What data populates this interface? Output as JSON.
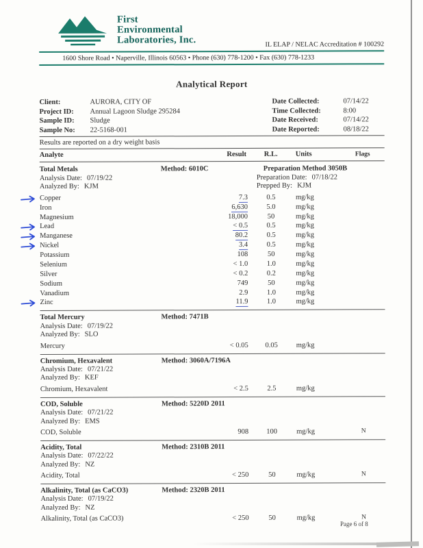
{
  "colors": {
    "accent": "#1b7c6b",
    "ink": "#2e2e2e",
    "annotation": "#2d4bd6"
  },
  "icons": {
    "logo": "mountain-lake-logo",
    "annotation": "right-arrow"
  },
  "letterhead": {
    "company": [
      "First",
      "Environmental",
      "Laboratories, Inc."
    ],
    "accreditation": "IL ELAP / NELAC Accreditation # 100292",
    "address": "1600 Shore Road • Naperville, Illinois 60563 • Phone (630) 778-1200 • Fax (630) 778-1233"
  },
  "report": {
    "title": "Analytical Report",
    "note": "Results are reported on a dry weight basis",
    "columns": {
      "analyte": "Analyte",
      "result": "Result",
      "rl": "R.L.",
      "units": "Units",
      "flags": "Flags"
    }
  },
  "info": {
    "client": {
      "label": "Client:",
      "value": "AURORA, CITY OF"
    },
    "project_id": {
      "label": "Project ID:",
      "value": "Annual Lagoon Sludge 295284"
    },
    "sample_id": {
      "label": "Sample ID:",
      "value": "Sludge"
    },
    "sample_no": {
      "label": "Sample No:",
      "value": "22-5168-001"
    },
    "date_collected": {
      "label": "Date Collected:",
      "value": "07/14/22"
    },
    "time_collected": {
      "label": "Time Collected:",
      "value": "8:00"
    },
    "date_received": {
      "label": "Date Received:",
      "value": "07/14/22"
    },
    "date_reported": {
      "label": "Date Reported:",
      "value": "08/18/22"
    }
  },
  "sections": [
    {
      "title": "Total Metals",
      "method": "Method: 6010C",
      "prep_method": "Preparation Method 3050B",
      "details_left": [
        {
          "label": "Analysis Date:",
          "value": "07/19/22"
        },
        {
          "label": "Analyzed By:",
          "value": "KJM"
        }
      ],
      "details_right": [
        {
          "label": "Preparation Date:",
          "value": "07/18/22"
        },
        {
          "label": "Prepped By:",
          "value": "KJM"
        }
      ],
      "rows": [
        {
          "analyte": "Copper",
          "result": "7.3",
          "rl": "0.5",
          "units": "mg/kg",
          "flags": "",
          "annotated": true,
          "underlined": true
        },
        {
          "analyte": "Iron",
          "result": "6,630",
          "rl": "5.0",
          "units": "mg/kg",
          "flags": "",
          "annotated": false,
          "underlined": true
        },
        {
          "analyte": "Magnesium",
          "result": "18,000",
          "rl": "50",
          "units": "mg/kg",
          "flags": "",
          "annotated": false,
          "underlined": false
        },
        {
          "analyte": "Lead",
          "result": "< 0.5",
          "rl": "0.5",
          "units": "mg/kg",
          "flags": "",
          "annotated": true,
          "underlined": true
        },
        {
          "analyte": "Manganese",
          "result": "80.2",
          "rl": "0.5",
          "units": "mg/kg",
          "flags": "",
          "annotated": true,
          "underlined": true
        },
        {
          "analyte": "Nickel",
          "result": "3.4",
          "rl": "0.5",
          "units": "mg/kg",
          "flags": "",
          "annotated": true,
          "underlined": true
        },
        {
          "analyte": "Potassium",
          "result": "108",
          "rl": "50",
          "units": "mg/kg",
          "flags": "",
          "annotated": false,
          "underlined": false
        },
        {
          "analyte": "Selenium",
          "result": "< 1.0",
          "rl": "1.0",
          "units": "mg/kg",
          "flags": "",
          "annotated": false,
          "underlined": false
        },
        {
          "analyte": "Silver",
          "result": "< 0.2",
          "rl": "0.2",
          "units": "mg/kg",
          "flags": "",
          "annotated": false,
          "underlined": false
        },
        {
          "analyte": "Sodium",
          "result": "749",
          "rl": "50",
          "units": "mg/kg",
          "flags": "",
          "annotated": false,
          "underlined": false
        },
        {
          "analyte": "Vanadium",
          "result": "2.9",
          "rl": "1.0",
          "units": "mg/kg",
          "flags": "",
          "annotated": false,
          "underlined": false
        },
        {
          "analyte": "Zinc",
          "result": "11.9",
          "rl": "1.0",
          "units": "mg/kg",
          "flags": "",
          "annotated": true,
          "underlined": true
        }
      ]
    },
    {
      "title": "Total Mercury",
      "method": "Method: 7471B",
      "prep_method": "",
      "details_left": [
        {
          "label": "Analysis Date:",
          "value": "07/19/22"
        },
        {
          "label": "Analyzed By:",
          "value": "SLO"
        }
      ],
      "details_right": [],
      "rows": [
        {
          "analyte": "Mercury",
          "result": "< 0.05",
          "rl": "0.05",
          "units": "mg/kg",
          "flags": "",
          "annotated": false,
          "underlined": false
        }
      ]
    },
    {
      "title": "Chromium, Hexavalent",
      "method": "Method: 3060A/7196A",
      "prep_method": "",
      "details_left": [
        {
          "label": "Analysis Date:",
          "value": "07/21/22"
        },
        {
          "label": "Analyzed By:",
          "value": "KEF"
        }
      ],
      "details_right": [],
      "rows": [
        {
          "analyte": "Chromium, Hexavalent",
          "result": "< 2.5",
          "rl": "2.5",
          "units": "mg/kg",
          "flags": "",
          "annotated": false,
          "underlined": false
        }
      ]
    },
    {
      "title": "COD, Soluble",
      "method": "Method: 5220D 2011",
      "prep_method": "",
      "details_left": [
        {
          "label": "Analysis Date:",
          "value": "07/21/22"
        },
        {
          "label": "Analyzed By:",
          "value": "EMS"
        }
      ],
      "details_right": [],
      "rows": [
        {
          "analyte": "COD, Soluble",
          "result": "908",
          "rl": "100",
          "units": "mg/kg",
          "flags": "N",
          "annotated": false,
          "underlined": false
        }
      ]
    },
    {
      "title": "Acidity, Total",
      "method": "Method: 2310B 2011",
      "prep_method": "",
      "details_left": [
        {
          "label": "Analysis Date:",
          "value": "07/22/22"
        },
        {
          "label": "Analyzed By:",
          "value": "NZ"
        }
      ],
      "details_right": [],
      "rows": [
        {
          "analyte": "Acidity, Total",
          "result": "< 250",
          "rl": "50",
          "units": "mg/kg",
          "flags": "N",
          "annotated": false,
          "underlined": false
        }
      ]
    },
    {
      "title": "Alkalinity, Total (as CaCO3)",
      "method": "Method: 2320B 2011",
      "prep_method": "",
      "details_left": [
        {
          "label": "Analysis Date:",
          "value": "07/19/22"
        },
        {
          "label": "Analyzed By:",
          "value": "NZ"
        }
      ],
      "details_right": [],
      "rows": [
        {
          "analyte": "Alkalinity, Total (as CaCO3)",
          "result": "< 250",
          "rl": "50",
          "units": "mg/kg",
          "flags": "N",
          "annotated": false,
          "underlined": false
        }
      ]
    }
  ],
  "footer": {
    "page_label": "Page 6 of 8"
  }
}
